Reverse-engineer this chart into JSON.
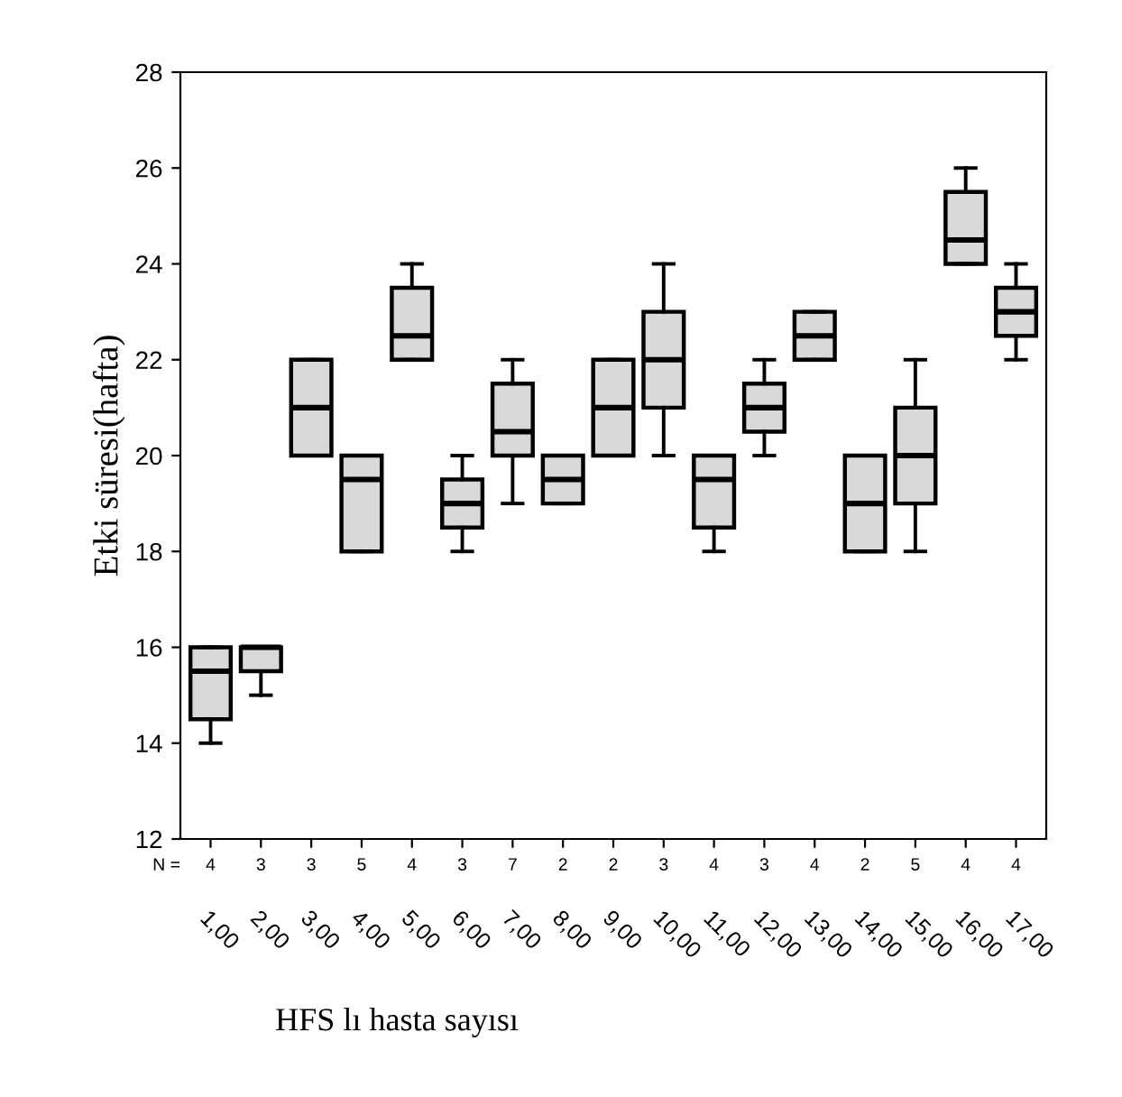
{
  "chart_data": {
    "type": "box",
    "xlabel": "HFS lı hasta sayısı",
    "ylabel": "Etki süresi(hafta)",
    "categories": [
      "1,00",
      "2,00",
      "3,00",
      "4,00",
      "5,00",
      "6,00",
      "7,00",
      "8,00",
      "9,00",
      "10,00",
      "11,00",
      "12,00",
      "13,00",
      "14,00",
      "15,00",
      "16,00",
      "17,00"
    ],
    "boxes": [
      {
        "low": 14,
        "q1": 14.5,
        "median": 15.5,
        "q3": 16,
        "high": 16
      },
      {
        "low": 15,
        "q1": 15.5,
        "median": 16,
        "q3": 16,
        "high": 16
      },
      {
        "low": 20,
        "q1": 20,
        "median": 21,
        "q3": 22,
        "high": 22
      },
      {
        "low": 18,
        "q1": 18,
        "median": 19.5,
        "q3": 20,
        "high": 20
      },
      {
        "low": 22,
        "q1": 22,
        "median": 22.5,
        "q3": 23.5,
        "high": 24
      },
      {
        "low": 18,
        "q1": 18.5,
        "median": 19,
        "q3": 19.5,
        "high": 20
      },
      {
        "low": 19,
        "q1": 20,
        "median": 20.5,
        "q3": 21.5,
        "high": 22
      },
      {
        "low": 19,
        "q1": 19,
        "median": 19.5,
        "q3": 20,
        "high": 20
      },
      {
        "low": 20,
        "q1": 20,
        "median": 21,
        "q3": 22,
        "high": 22
      },
      {
        "low": 20,
        "q1": 21,
        "median": 22,
        "q3": 23,
        "high": 24
      },
      {
        "low": 18,
        "q1": 18.5,
        "median": 19.5,
        "q3": 20,
        "high": 20
      },
      {
        "low": 20,
        "q1": 20.5,
        "median": 21,
        "q3": 21.5,
        "high": 22
      },
      {
        "low": 22,
        "q1": 22,
        "median": 22.5,
        "q3": 23,
        "high": 23
      },
      {
        "low": 18,
        "q1": 18,
        "median": 19,
        "q3": 20,
        "high": 20
      },
      {
        "low": 18,
        "q1": 19,
        "median": 20,
        "q3": 21,
        "high": 22
      },
      {
        "low": 24,
        "q1": 24,
        "median": 24.5,
        "q3": 25.5,
        "high": 26
      },
      {
        "low": 22,
        "q1": 22.5,
        "median": 23,
        "q3": 23.5,
        "high": 24
      }
    ],
    "color": "#d9d9d9",
    "ylim": [
      12,
      28
    ],
    "yticks": [
      12,
      14,
      16,
      18,
      20,
      22,
      24,
      26,
      28
    ],
    "grid": false,
    "annotations": [
      "N =",
      "4",
      "3",
      "3",
      "5",
      "4",
      "3",
      "7",
      "2",
      "2",
      "3",
      "4",
      "3",
      "4",
      "2",
      "5",
      "4",
      "4"
    ]
  }
}
